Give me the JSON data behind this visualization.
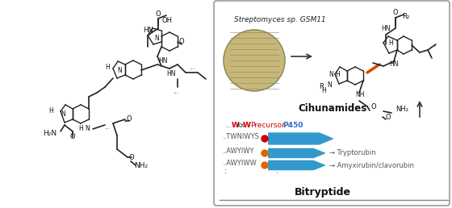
{
  "fig_width": 5.6,
  "fig_height": 2.58,
  "dpi": 100,
  "bg_color": "#ffffff",
  "box_color": "#cccccc",
  "title_italic": "Streptomyces sp. GSM11",
  "cihunamides_label": "Cihunamides",
  "bitryptide_label": "Bitryptide",
  "arrow_label": "→",
  "seq_label1": "...W××W   Precursor  P450",
  "seq1": "..TWNIWYS",
  "seq2": "..AWYIWY",
  "seq3": "..AWYIWW",
  "prod1": "→ Tryptorubin",
  "prod2": "→ Amyxirubin/clavorubin",
  "blue_arrow_color": "#3399cc",
  "red_dot_color": "#cc0000",
  "orange_dot_color": "#dd6600",
  "red_text_color": "#cc0000",
  "blue_text_color": "#3366cc",
  "gray_text_color": "#555555",
  "black_text_color": "#111111"
}
